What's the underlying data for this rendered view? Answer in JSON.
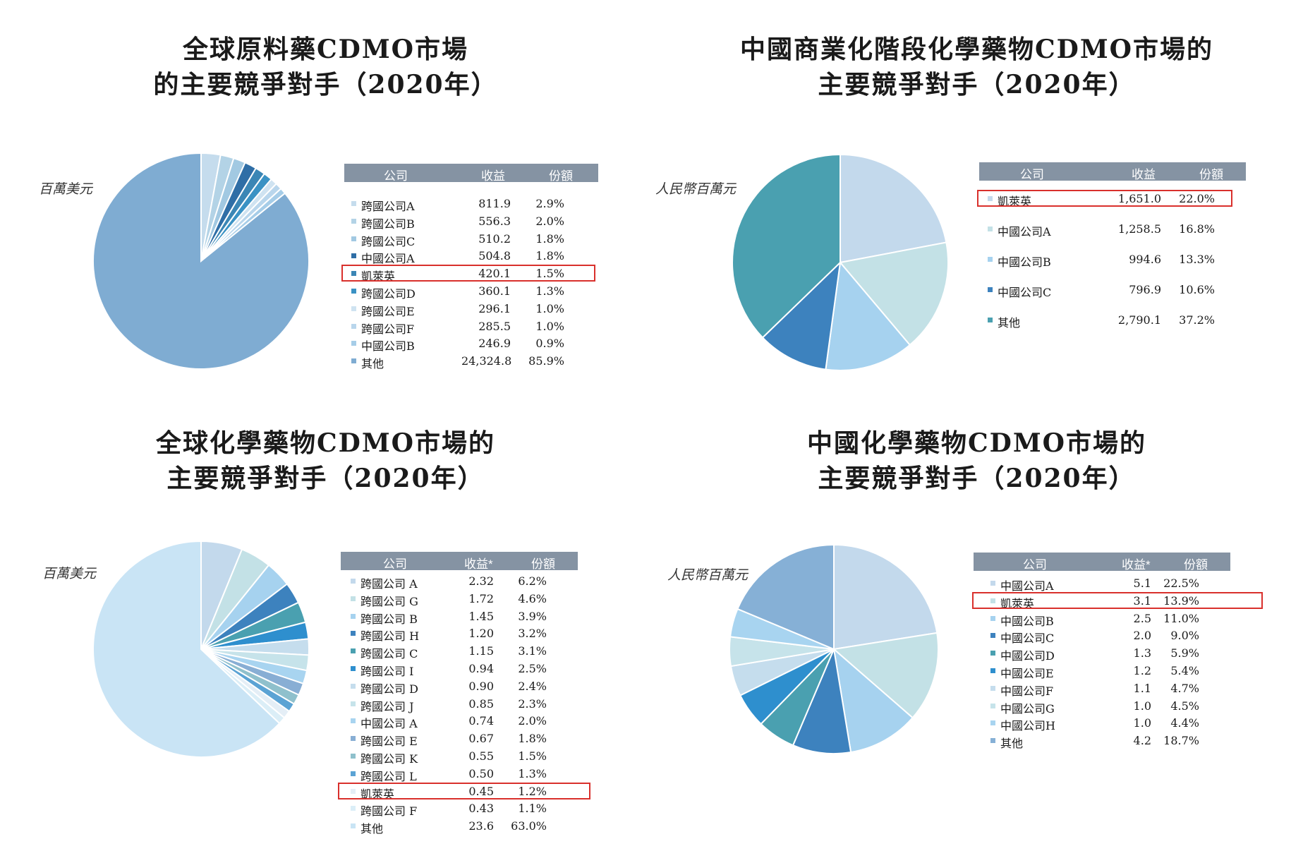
{
  "charts": [
    {
      "title_lines": [
        "全球原料藥CDMO市場",
        "的主要競爭對手（2020年）"
      ],
      "unit": "百萬美元",
      "headers": {
        "company": "公司",
        "revenue": "收益",
        "share": "份額"
      },
      "highlight": "凱萊英"
    },
    {
      "title_lines": [
        "中國商業化階段化學藥物CDMO市場的",
        "主要競爭對手（2020年）"
      ],
      "unit": "人民幣百萬元",
      "headers": {
        "company": "公司",
        "revenue": "收益",
        "share": "份額"
      },
      "highlight": "凱萊英"
    },
    {
      "title_lines": [
        "全球化學藥物CDMO市場的",
        "主要競爭對手（2020年）"
      ],
      "unit": "百萬美元",
      "headers": {
        "company": "公司",
        "revenue": "收益*",
        "share": "份額"
      },
      "highlight": "凱萊英"
    },
    {
      "title_lines": [
        "中國化學藥物CDMO市場的",
        "主要競爭對手（2020年）"
      ],
      "unit": "人民幣百萬元",
      "headers": {
        "company": "公司",
        "revenue": "收益*",
        "share": "份額"
      },
      "highlight": "凱萊英"
    }
  ],
  "chart_data": [
    {
      "type": "pie",
      "categories": [
        "跨國公司A",
        "跨國公司B",
        "跨國公司C",
        "中國公司A",
        "凱萊英",
        "跨國公司D",
        "跨國公司E",
        "跨國公司F",
        "中國公司B",
        "其他"
      ],
      "revenue_labels": [
        "811.9",
        "556.3",
        "510.2",
        "504.8",
        "420.1",
        "360.1",
        "296.1",
        "285.5",
        "246.9",
        "24,324.8"
      ],
      "share_labels": [
        "2.9%",
        "2.0%",
        "1.8%",
        "1.8%",
        "1.5%",
        "1.3%",
        "1.0%",
        "1.0%",
        "0.9%",
        "85.9%"
      ],
      "values": [
        2.9,
        2.0,
        1.8,
        1.8,
        1.5,
        1.3,
        1.0,
        1.0,
        0.9,
        85.9
      ],
      "colors": [
        "#c5dced",
        "#b3d3e6",
        "#a2c9e2",
        "#2f6ea6",
        "#3b86b5",
        "#3a92c4",
        "#cfe3f1",
        "#b9d6ec",
        "#a6cde8",
        "#7facd2"
      ]
    },
    {
      "type": "pie",
      "categories": [
        "凱萊英",
        "中國公司A",
        "中國公司B",
        "中國公司C",
        "其他"
      ],
      "revenue_labels": [
        "1,651.0",
        "1,258.5",
        "994.6",
        "796.9",
        "2,790.1"
      ],
      "share_labels": [
        "22.0%",
        "16.8%",
        "13.3%",
        "10.6%",
        "37.2%"
      ],
      "values": [
        22.0,
        16.8,
        13.3,
        10.6,
        37.2
      ],
      "colors": [
        "#c3d9ec",
        "#c3e1e6",
        "#a6d2ef",
        "#3d82be",
        "#4aa0b0"
      ]
    },
    {
      "type": "pie",
      "categories": [
        "跨國公司 A",
        "跨國公司 G",
        "跨國公司 B",
        "跨國公司 H",
        "跨國公司 C",
        "跨國公司 I",
        "跨國公司 D",
        "跨國公司 J",
        "中國公司 A",
        "跨國公司 E",
        "跨國公司 K",
        "跨國公司 L",
        "凱萊英",
        "跨國公司 F",
        "其他"
      ],
      "revenue_labels": [
        "2.32",
        "1.72",
        "1.45",
        "1.20",
        "1.15",
        "0.94",
        "0.90",
        "0.85",
        "0.74",
        "0.67",
        "0.55",
        "0.50",
        "0.45",
        "0.43",
        "23.6"
      ],
      "share_labels": [
        "6.2%",
        "4.6%",
        "3.9%",
        "3.2%",
        "3.1%",
        "2.5%",
        "2.4%",
        "2.3%",
        "2.0%",
        "1.8%",
        "1.5%",
        "1.3%",
        "1.2%",
        "1.1%",
        "63.0%"
      ],
      "values": [
        6.2,
        4.6,
        3.9,
        3.2,
        3.1,
        2.5,
        2.4,
        2.3,
        2.0,
        1.8,
        1.5,
        1.3,
        1.2,
        1.1,
        63.0
      ],
      "colors": [
        "#c3d9ec",
        "#c3e1e6",
        "#a6d2ef",
        "#3d82be",
        "#4aa0b0",
        "#2e8fce",
        "#c5dded",
        "#c6e3ea",
        "#a8d4f0",
        "#88aed4",
        "#8fc0cc",
        "#5ba3d4",
        "#e4eef6",
        "#dbeef7",
        "#c9e4f5"
      ]
    },
    {
      "type": "pie",
      "categories": [
        "中國公司A",
        "凱萊英",
        "中國公司B",
        "中國公司C",
        "中國公司D",
        "中國公司E",
        "中國公司F",
        "中國公司G",
        "中國公司H",
        "其他"
      ],
      "revenue_labels": [
        "5.1",
        "3.1",
        "2.5",
        "2.0",
        "1.3",
        "1.2",
        "1.1",
        "1.0",
        "1.0",
        "4.2"
      ],
      "share_labels": [
        "22.5%",
        "13.9%",
        "11.0%",
        "9.0%",
        "5.9%",
        "5.4%",
        "4.7%",
        "4.5%",
        "4.4%",
        "18.7%"
      ],
      "values": [
        22.5,
        13.9,
        11.0,
        9.0,
        5.9,
        5.4,
        4.7,
        4.5,
        4.4,
        18.7
      ],
      "colors": [
        "#c3d9ec",
        "#c3e1e6",
        "#a6d2ef",
        "#3d82be",
        "#4aa0b0",
        "#2e8fce",
        "#c5dded",
        "#c6e3ea",
        "#a8d4f0",
        "#86b0d6"
      ]
    }
  ]
}
